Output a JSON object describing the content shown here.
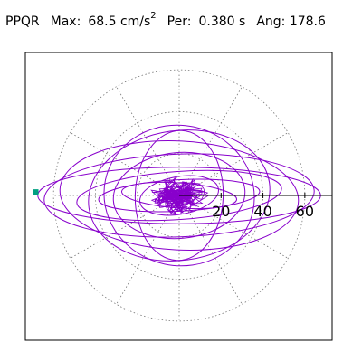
{
  "header": {
    "station": "PPQR",
    "max_label": "Max:",
    "max_value": "68.5",
    "max_unit": "cm/s",
    "max_unit_exp": "2",
    "per_label": "Per:",
    "per_value": "0.380",
    "per_unit": "s",
    "ang_label": "Ang:",
    "ang_value": "178.6"
  },
  "chart_data": {
    "type": "polar-orbit",
    "radial_ticks": [
      20,
      40,
      60
    ],
    "radial_max": 70,
    "rings": [
      20,
      40,
      60
    ],
    "spoke_angles_deg": [
      0,
      30,
      60,
      90,
      120,
      150,
      180,
      210,
      240,
      270,
      300,
      330
    ],
    "grid": true,
    "max_marker": {
      "value": 68.5,
      "angle_deg": 178.6
    },
    "trace_color": "#8800cc",
    "marker_color": "#00a080",
    "orbits": [
      {
        "a": 67.5,
        "b": 13.5,
        "rot_deg": 0
      },
      {
        "a": 64.5,
        "b": 19.8,
        "rot_deg": 2
      },
      {
        "a": 57.0,
        "b": 26.0,
        "rot_deg": -3
      },
      {
        "a": 49.0,
        "b": 11.5,
        "rot_deg": 4
      },
      {
        "a": 43.5,
        "b": 31.0,
        "rot_deg": 8
      },
      {
        "a": 36.0,
        "b": 33.5,
        "rot_deg": -12
      },
      {
        "a": 31.5,
        "b": 20.5,
        "rot_deg": 5
      },
      {
        "a": 21.0,
        "b": 31.0,
        "rot_deg": -2
      },
      {
        "a": 38.5,
        "b": 7.5,
        "rot_deg": 3
      },
      {
        "a": 27.5,
        "b": 6.0,
        "rot_deg": -4
      },
      {
        "a": 19.0,
        "b": 9.0,
        "rot_deg": 10
      }
    ],
    "core_cloud": {
      "radius_x": 14,
      "radius_y": 9,
      "loops": 30
    }
  }
}
